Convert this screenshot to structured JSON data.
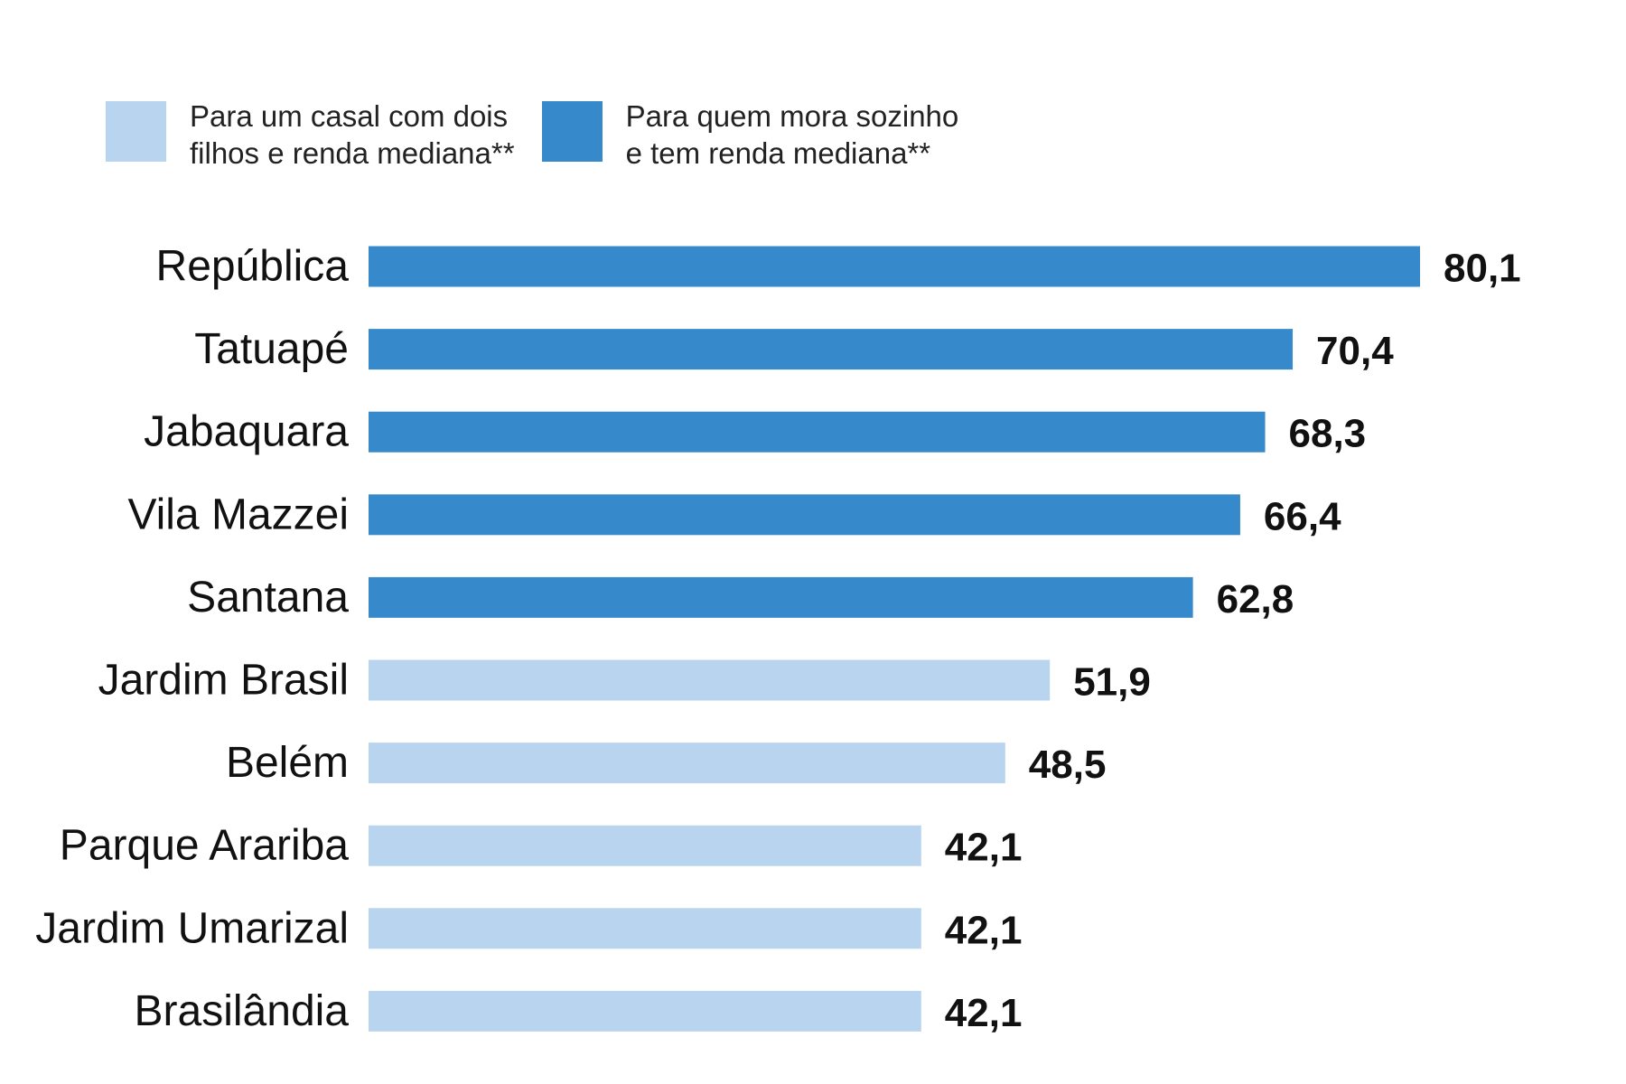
{
  "legend": [
    {
      "label": "Para um casal com dois\nfilhos e renda mediana**",
      "color": "#b9d4ef"
    },
    {
      "label": "Para quem mora sozinho\ne tem renda mediana**",
      "color": "#368acb"
    }
  ],
  "chart_data": {
    "type": "bar",
    "orientation": "horizontal",
    "title": "",
    "xlabel": "",
    "ylabel": "",
    "xlim": [
      0,
      80.1
    ],
    "grid": false,
    "legend_position": "top-left",
    "categories": [
      "República",
      "Tatuapé",
      "Jabaquara",
      "Vila Mazzei",
      "Santana",
      "Jardim Brasil",
      "Belém",
      "Parque Arariba",
      "Jardim Umarizal",
      "Brasilândia"
    ],
    "values": [
      80.1,
      70.4,
      68.3,
      66.4,
      62.8,
      51.9,
      48.5,
      42.1,
      42.1,
      42.1
    ],
    "value_labels": [
      "80,1",
      "70,4",
      "68,3",
      "66,4",
      "62,8",
      "51,9",
      "48,5",
      "42,1",
      "42,1",
      "42,1"
    ],
    "bar_series": [
      1,
      1,
      1,
      1,
      1,
      0,
      0,
      0,
      0,
      0
    ]
  }
}
